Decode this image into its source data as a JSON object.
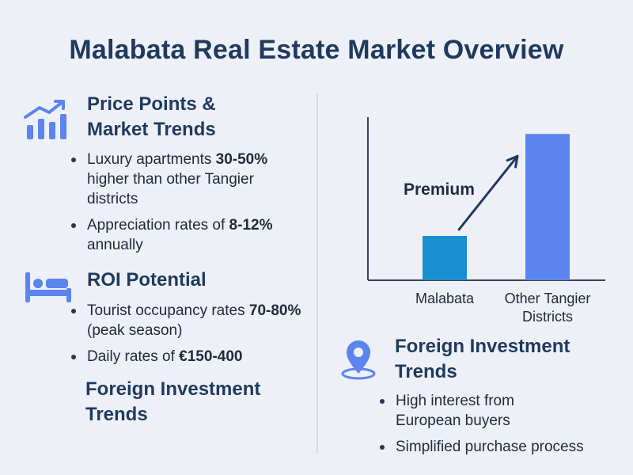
{
  "title": "Malabata Real Estate Market Overview",
  "left": {
    "price": {
      "icon": "growth-chart-icon",
      "heading_line1": "Price Points &",
      "heading_line2": "Market Trends",
      "bullets": [
        {
          "pre": "Luxury apartments ",
          "bold": "30-50%",
          "post": " higher than other Tangier districts"
        },
        {
          "pre": "Appreciation rates of ",
          "bold": "8-12%",
          "post": " annually"
        }
      ]
    },
    "roi": {
      "icon": "bed-icon",
      "heading": "ROI Potential",
      "bullets": [
        {
          "pre": "Tourist occupancy rates ",
          "bold": "70-80%",
          "post": " (peak season)"
        },
        {
          "pre": "Daily rates of ",
          "bold": "€150-400",
          "post": ""
        }
      ]
    },
    "foreign_heading_line1": "Foreign Investment",
    "foreign_heading_line2": "Trends"
  },
  "chart_data": {
    "type": "bar",
    "categories": [
      "Malabata",
      "Other Tangier Districts"
    ],
    "category_lines": [
      [
        "Malabata"
      ],
      [
        "Other Tangier",
        "Districts"
      ]
    ],
    "values": [
      1,
      3.3
    ],
    "annotation": "Premium",
    "colors": [
      "#1a8fd0",
      "#5b84ef"
    ],
    "grid": false
  },
  "right": {
    "icon": "location-pin-icon",
    "heading_line1": "Foreign Investment",
    "heading_line2": "Trends",
    "bullets": [
      {
        "pre": "High interest from European buyers",
        "bold": "",
        "post": ""
      },
      {
        "pre": "Simplified purchase process",
        "bold": "",
        "post": ""
      }
    ]
  }
}
